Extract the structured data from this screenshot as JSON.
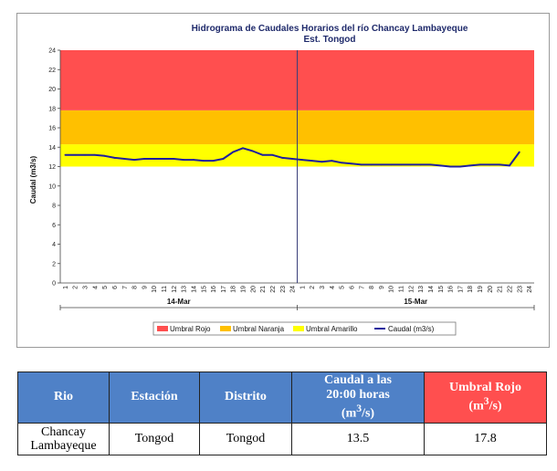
{
  "chart_data": {
    "type": "line",
    "title": "Hidrograma de Caudales Horarios del río Chancay Lambayeque",
    "subtitle": "Est. Tongod",
    "ylabel": "Caudal  (m3/s)",
    "ylim": [
      0,
      24
    ],
    "yticks": [
      "0",
      "2",
      "4",
      "6",
      "8",
      "10",
      "12",
      "14",
      "16",
      "18",
      "20",
      "22",
      "24"
    ],
    "x_tick_labels": [
      "1",
      "2",
      "3",
      "4",
      "5",
      "6",
      "7",
      "8",
      "9",
      "10",
      "11",
      "12",
      "13",
      "14",
      "15",
      "16",
      "17",
      "18",
      "19",
      "20",
      "21",
      "22",
      "23",
      "24",
      "1",
      "2",
      "3",
      "4",
      "5",
      "6",
      "7",
      "8",
      "9",
      "10",
      "11",
      "12",
      "13",
      "14",
      "15",
      "16",
      "17",
      "18",
      "19",
      "20",
      "21",
      "22",
      "23",
      "24"
    ],
    "days": [
      "14-Mar",
      "15-Mar"
    ],
    "bands": [
      {
        "name": "Umbral Amarillo",
        "from": 12.0,
        "to": 14.3,
        "color": "#ffff00"
      },
      {
        "name": "Umbral Naranja",
        "from": 14.3,
        "to": 17.8,
        "color": "#ffc000"
      },
      {
        "name": "Umbral Rojo",
        "from": 17.8,
        "to": 24,
        "color": "#ff4f4f"
      }
    ],
    "series": [
      {
        "name": "Caudal (m3/s)",
        "color": "#1f1f9e",
        "values": [
          13.2,
          13.2,
          13.2,
          13.2,
          13.1,
          12.9,
          12.8,
          12.7,
          12.8,
          12.8,
          12.8,
          12.8,
          12.7,
          12.7,
          12.6,
          12.6,
          12.8,
          13.5,
          13.9,
          13.6,
          13.2,
          13.2,
          12.9,
          12.8,
          12.7,
          12.6,
          12.5,
          12.6,
          12.4,
          12.3,
          12.2,
          12.2,
          12.2,
          12.2,
          12.2,
          12.2,
          12.2,
          12.2,
          12.1,
          12.0,
          12.0,
          12.1,
          12.2,
          12.2,
          12.2,
          12.1,
          13.5
        ]
      }
    ],
    "legend": [
      "Umbral Rojo",
      "Umbral Naranja",
      "Umbral Amarillo",
      "Caudal (m3/s)"
    ],
    "legend_position": "bottom"
  },
  "table": {
    "headers": [
      "Rio",
      "Estación",
      "Distrito",
      "Caudal a las 20:00 horas (m³/s)",
      "Umbral Rojo (m³/s)"
    ],
    "caudal_header": {
      "line1": "Caudal a las",
      "line2": "20:00 horas",
      "line3": "(m",
      "sup": "3",
      "line3_end": "/s)"
    },
    "umbral_header": {
      "line1": "Umbral Rojo",
      "line2": "(m",
      "sup": "3",
      "line2_end": "/s)"
    },
    "row": {
      "rio_line1": "Chancay",
      "rio_line2": "Lambayeque",
      "estacion": "Tongod",
      "distrito": "Tongod",
      "caudal": "13.5",
      "umbral_rojo": "17.8"
    }
  },
  "colors": {
    "red": "#ff4f4f",
    "orange": "#ffc000",
    "yellow": "#ffff00",
    "line": "#1f1f9e",
    "header_blue": "#4f81c7"
  }
}
